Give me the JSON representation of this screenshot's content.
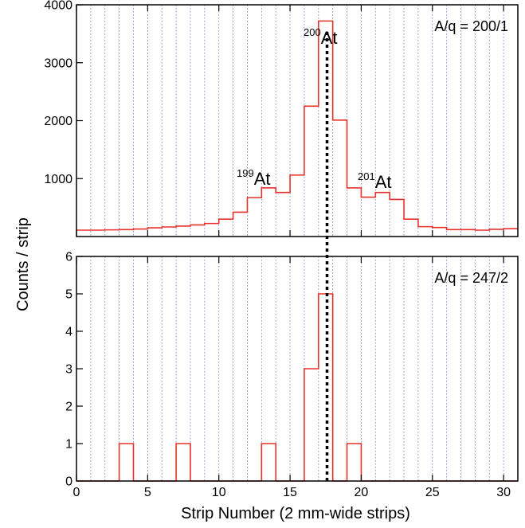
{
  "chart_data": {
    "type": "histogram-step",
    "xlabel": "Strip Number (2 mm-wide strips)",
    "ylabel": "Counts / strip",
    "xlim": [
      0,
      31
    ],
    "x_ticks": [
      0,
      5,
      10,
      15,
      20,
      25,
      30
    ],
    "grid": "vertical dotted lines at every integer strip",
    "line_color": "#e8312a",
    "marker_line": {
      "x": 17.6,
      "style": "dotted",
      "color": "#000000",
      "spans": "both panels"
    },
    "panels": [
      {
        "annotation": "A/q = 200/1",
        "ylim": [
          0,
          4000
        ],
        "y_ticks": [
          1000,
          2000,
          3000,
          4000
        ],
        "bins_start": 0,
        "values": [
          110,
          110,
          115,
          120,
          130,
          150,
          165,
          180,
          200,
          225,
          300,
          420,
          670,
          840,
          760,
          1060,
          2250,
          3720,
          2010,
          840,
          680,
          760,
          640,
          300,
          170,
          155,
          120,
          120,
          110,
          125,
          135
        ],
        "isotope_labels": [
          {
            "mass": "199",
            "element": "At",
            "near_x": 13.5
          },
          {
            "mass": "200",
            "element": "At",
            "near_x": 17.5
          },
          {
            "mass": "201",
            "element": "At",
            "near_x": 21.0
          }
        ]
      },
      {
        "annotation": "A/q = 247/2",
        "ylim": [
          0,
          6
        ],
        "y_ticks": [
          0,
          1,
          2,
          3,
          4,
          5,
          6
        ],
        "bins_start": 0,
        "values": [
          0,
          0,
          0,
          1,
          0,
          0,
          0,
          1,
          0,
          0,
          0,
          0,
          0,
          1,
          0,
          0,
          3,
          5,
          0,
          1,
          0,
          0,
          0,
          0,
          0,
          0,
          0,
          0,
          0,
          0,
          0
        ]
      }
    ]
  }
}
